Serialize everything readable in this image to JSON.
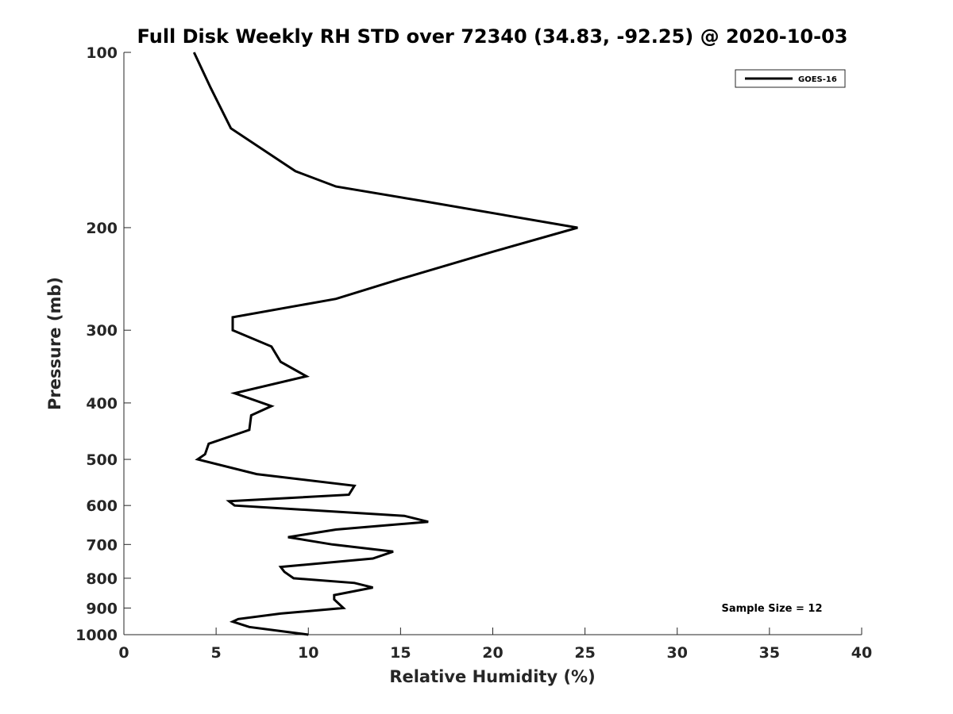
{
  "chart_data": {
    "type": "line",
    "title": "Full Disk Weekly RH STD over 72340 (34.83, -92.25) @ 2020-10-03",
    "xlabel": "Relative Humidity (%)",
    "ylabel": "Pressure (mb)",
    "xlim": [
      0,
      40
    ],
    "ylim": [
      100,
      1000
    ],
    "yscale": "log",
    "y_reversed": true,
    "x_ticks": [
      "0",
      "5",
      "10",
      "15",
      "20",
      "25",
      "30",
      "35",
      "40"
    ],
    "y_ticks": [
      "100",
      "200",
      "300",
      "400",
      "500",
      "600",
      "700",
      "800",
      "900",
      "1000"
    ],
    "grid": false,
    "legend_position": "top-right",
    "series": [
      {
        "name": "GOES-16",
        "color": "#000000",
        "points": [
          [
            3.8,
            100
          ],
          [
            4.7,
            115
          ],
          [
            5.8,
            135
          ],
          [
            9.3,
            160
          ],
          [
            11.5,
            170
          ],
          [
            16.2,
            180
          ],
          [
            24.6,
            200
          ],
          [
            20.0,
            220
          ],
          [
            15.0,
            245
          ],
          [
            11.5,
            265
          ],
          [
            5.9,
            285
          ],
          [
            5.9,
            300
          ],
          [
            8.0,
            320
          ],
          [
            8.5,
            340
          ],
          [
            9.9,
            360
          ],
          [
            6.0,
            385
          ],
          [
            8.0,
            405
          ],
          [
            6.9,
            420
          ],
          [
            6.8,
            445
          ],
          [
            4.6,
            470
          ],
          [
            4.4,
            490
          ],
          [
            4.0,
            500
          ],
          [
            7.2,
            530
          ],
          [
            12.5,
            555
          ],
          [
            12.2,
            575
          ],
          [
            5.7,
            590
          ],
          [
            6.0,
            600
          ],
          [
            15.2,
            625
          ],
          [
            16.5,
            640
          ],
          [
            11.5,
            660
          ],
          [
            8.9,
            680
          ],
          [
            11.3,
            700
          ],
          [
            14.6,
            720
          ],
          [
            13.5,
            740
          ],
          [
            8.5,
            765
          ],
          [
            8.7,
            780
          ],
          [
            9.2,
            800
          ],
          [
            12.5,
            815
          ],
          [
            13.5,
            830
          ],
          [
            11.4,
            855
          ],
          [
            11.4,
            870
          ],
          [
            11.9,
            900
          ],
          [
            8.5,
            920
          ],
          [
            6.2,
            940
          ],
          [
            5.9,
            950
          ],
          [
            6.8,
            970
          ],
          [
            10.0,
            1000
          ]
        ]
      }
    ],
    "annotations": [
      "Sample Size = 12"
    ]
  }
}
